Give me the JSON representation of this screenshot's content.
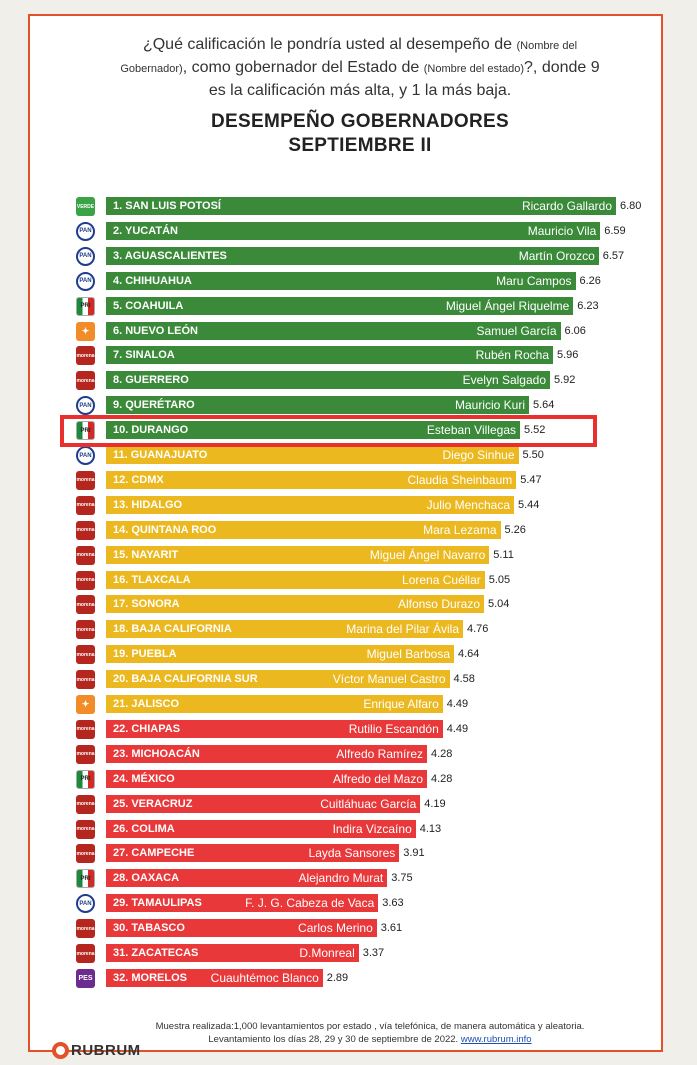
{
  "question": {
    "p1": "¿Qué calificación le pondría usted al desempeño de ",
    "s1": "(Nombre del Gobernador)",
    "p2": ", como gobernador del Estado de ",
    "s2": "(Nombre del estado)",
    "p3": "?, donde 9 es la calificación más alta, y 1 la más baja."
  },
  "title_line1": "DESEMPEÑO GOBERNADORES",
  "title_line2": "SEPTIEMBRE II",
  "chart_data": {
    "type": "bar",
    "orientation": "horizontal",
    "title": "DESEMPEÑO GOBERNADORES SEPTIEMBRE II",
    "xlim": [
      0,
      9
    ],
    "colors": {
      "high": "#3a8a3a",
      "mid": "#ecb81f",
      "low": "#e8383a"
    },
    "items": [
      {
        "state": "1. SAN LUIS POTOSÍ",
        "governor": "Ricardo Gallardo",
        "value": 6.8,
        "party": "verde",
        "party_label": "VERDE",
        "tier": "high"
      },
      {
        "state": "2. YUCATÁN",
        "governor": "Mauricio Vila",
        "value": 6.59,
        "party": "pan",
        "party_label": "PAN",
        "tier": "high"
      },
      {
        "state": "3. AGUASCALIENTES",
        "governor": "Martín Orozco",
        "value": 6.57,
        "party": "pan",
        "party_label": "PAN",
        "tier": "high"
      },
      {
        "state": "4. CHIHUAHUA",
        "governor": "Maru Campos",
        "value": 6.26,
        "party": "pan",
        "party_label": "PAN",
        "tier": "high"
      },
      {
        "state": "5. COAHUILA",
        "governor": "Miguel Ángel Riquelme",
        "value": 6.23,
        "party": "pri",
        "party_label": "PRI",
        "tier": "high"
      },
      {
        "state": "6. NUEVO LEÓN",
        "governor": "Samuel García",
        "value": 6.06,
        "party": "mc",
        "party_label": "✦",
        "tier": "high"
      },
      {
        "state": "7. SINALOA",
        "governor": "Rubén Rocha",
        "value": 5.96,
        "party": "morena",
        "party_label": "morena",
        "tier": "high"
      },
      {
        "state": "8. GUERRERO",
        "governor": "Evelyn Salgado",
        "value": 5.92,
        "party": "morena",
        "party_label": "morena",
        "tier": "high"
      },
      {
        "state": "9. QUERÉTARO",
        "governor": "Mauricio Kuri",
        "value": 5.64,
        "party": "pan",
        "party_label": "PAN",
        "tier": "high"
      },
      {
        "state": "10. DURANGO",
        "governor": "Esteban Villegas",
        "value": 5.52,
        "party": "pri",
        "party_label": "PRI",
        "tier": "high"
      },
      {
        "state": "11. GUANAJUATO",
        "governor": "Diego Sinhue",
        "value": 5.5,
        "party": "pan",
        "party_label": "PAN",
        "tier": "mid"
      },
      {
        "state": "12. CDMX",
        "governor": "Claudia Sheinbaum",
        "value": 5.47,
        "party": "morena",
        "party_label": "morena",
        "tier": "mid"
      },
      {
        "state": "13. HIDALGO",
        "governor": "Julio Menchaca",
        "value": 5.44,
        "party": "morena",
        "party_label": "morena",
        "tier": "mid"
      },
      {
        "state": "14. QUINTANA ROO",
        "governor": "Mara Lezama",
        "value": 5.26,
        "party": "morena",
        "party_label": "morena",
        "tier": "mid"
      },
      {
        "state": "15. NAYARIT",
        "governor": "Miguel Ángel Navarro",
        "value": 5.11,
        "party": "morena",
        "party_label": "morena",
        "tier": "mid"
      },
      {
        "state": "16. TLAXCALA",
        "governor": "Lorena Cuéllar",
        "value": 5.05,
        "party": "morena",
        "party_label": "morena",
        "tier": "mid"
      },
      {
        "state": "17. SONORA",
        "governor": "Alfonso Durazo",
        "value": 5.04,
        "party": "morena",
        "party_label": "morena",
        "tier": "mid"
      },
      {
        "state": "18. BAJA CALIFORNIA",
        "governor": "Marina del Pilar Ávila",
        "value": 4.76,
        "party": "morena",
        "party_label": "morena",
        "tier": "mid"
      },
      {
        "state": "19. PUEBLA",
        "governor": "Miguel Barbosa",
        "value": 4.64,
        "party": "morena",
        "party_label": "morena",
        "tier": "mid"
      },
      {
        "state": "20. BAJA CALIFORNIA SUR",
        "governor": "Víctor Manuel Castro",
        "value": 4.58,
        "party": "morena",
        "party_label": "morena",
        "tier": "mid"
      },
      {
        "state": "21. JALISCO",
        "governor": "Enrique Alfaro",
        "value": 4.49,
        "party": "mc",
        "party_label": "✦",
        "tier": "mid"
      },
      {
        "state": "22. CHIAPAS",
        "governor": "Rutilio Escandón",
        "value": 4.49,
        "party": "morena",
        "party_label": "morena",
        "tier": "low"
      },
      {
        "state": "23. MICHOACÁN",
        "governor": "Alfredo Ramírez",
        "value": 4.28,
        "party": "morena",
        "party_label": "morena",
        "tier": "low"
      },
      {
        "state": "24. MÉXICO",
        "governor": "Alfredo del Mazo",
        "value": 4.28,
        "party": "pri",
        "party_label": "PRI",
        "tier": "low"
      },
      {
        "state": "25. VERACRUZ",
        "governor": "Cuitláhuac García",
        "value": 4.19,
        "party": "morena",
        "party_label": "morena",
        "tier": "low"
      },
      {
        "state": "26. COLIMA",
        "governor": "Indira Vizcaíno",
        "value": 4.13,
        "party": "morena",
        "party_label": "morena",
        "tier": "low"
      },
      {
        "state": "27. CAMPECHE",
        "governor": "Layda Sansores",
        "value": 3.91,
        "party": "morena",
        "party_label": "morena",
        "tier": "low"
      },
      {
        "state": "28. OAXACA",
        "governor": "Alejandro Murat",
        "value": 3.75,
        "party": "pri",
        "party_label": "PRI",
        "tier": "low"
      },
      {
        "state": "29. TAMAULIPAS",
        "governor": "F. J. G. Cabeza de Vaca",
        "value": 3.63,
        "party": "pan",
        "party_label": "PAN",
        "tier": "low"
      },
      {
        "state": "30. TABASCO",
        "governor": "Carlos Merino",
        "value": 3.61,
        "party": "morena",
        "party_label": "morena",
        "tier": "low"
      },
      {
        "state": "31. ZACATECAS",
        "governor": "D.Monreal",
        "value": 3.37,
        "party": "morena",
        "party_label": "morena",
        "tier": "low"
      },
      {
        "state": "32. MORELOS",
        "governor": "Cuauhtémoc Blanco",
        "value": 2.89,
        "party": "pes",
        "party_label": "PES",
        "tier": "low"
      }
    ]
  },
  "footer": {
    "line1": "Muestra realizada:1,000 levantamientos por estado , vía telefónica, de manera automática y aleatoria.",
    "line2": "Levantamiento los días 28, 29 y 30  de septiembre de 2022.",
    "link": "www.rubrum.info"
  },
  "brand": "RUBRUM"
}
